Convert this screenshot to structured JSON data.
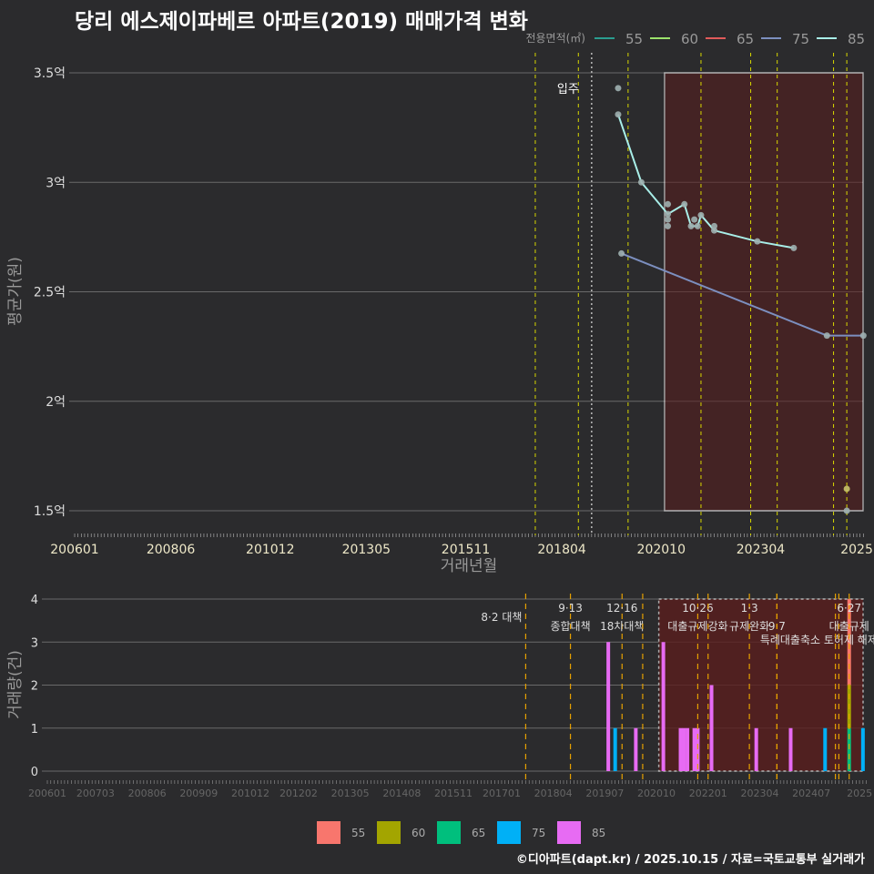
{
  "title": "당리 에스제이파베르 아파트(2019) 매매가격 변화",
  "credit": "©디아파트(dapt.kr) / 2025.10.15 / 자료=국토교통부 실거래가",
  "colors": {
    "55": "#f8766d",
    "60": "#a3a500",
    "65": "#00bf7d",
    "75": "#00b0f6",
    "85": "#e76bf3",
    "line55": "#2a9d8f",
    "line60": "#9be36b",
    "line65": "#e05a5a",
    "line75": "#7c8fbf",
    "line85": "#a8eee8"
  },
  "chart_data": [
    {
      "type": "line",
      "title": "당리 에스제이파베르 아파트(2019) 매매가격 변화",
      "xlabel": "거래년월",
      "ylabel": "평균가(원)",
      "legend_title": "전용면적(㎡)",
      "legend": [
        "55",
        "60",
        "65",
        "75",
        "85"
      ],
      "legend_position": "top-right",
      "xticks": [
        "200601",
        "200806",
        "201012",
        "201305",
        "201511",
        "201804",
        "202010",
        "202304",
        "2025"
      ],
      "yticks": [
        {
          "v": 1.5,
          "label": "1.5억"
        },
        {
          "v": 2,
          "label": "2억"
        },
        {
          "v": 2.5,
          "label": "2.5억"
        },
        {
          "v": 3,
          "label": "3억"
        },
        {
          "v": 3.5,
          "label": "3.5억"
        }
      ],
      "ylim": [
        1.4,
        3.6
      ],
      "move_in": {
        "month": "201901",
        "label": "입주"
      },
      "highlight_box": {
        "from": "202011",
        "to": "202510",
        "ymin": 1.5,
        "ymax": 3.5
      },
      "policy_lines": [
        "201708",
        "201809",
        "201912",
        "202110",
        "202301",
        "202309",
        "202502",
        "202506"
      ],
      "series": [
        {
          "name": "85",
          "points": [
            [
              "201909",
              3.31
            ],
            [
              "202004",
              3.0
            ],
            [
              "202012",
              2.855
            ],
            [
              "202105",
              2.9
            ],
            [
              "202107",
              2.8
            ],
            [
              "202109",
              2.8
            ],
            [
              "202110",
              2.85
            ],
            [
              "202202",
              2.78
            ],
            [
              "202303",
              2.73
            ],
            [
              "202402",
              2.7
            ]
          ],
          "extra_points": [
            [
              "201909",
              3.43
            ],
            [
              "202012",
              2.9
            ],
            [
              "202012",
              2.83
            ],
            [
              "202012",
              2.8
            ],
            [
              "202108",
              2.83
            ],
            [
              "202202",
              2.8
            ]
          ]
        },
        {
          "name": "75",
          "points": [
            [
              "201910",
              2.675
            ],
            [
              "202412",
              2.3
            ],
            [
              "202511",
              2.3
            ]
          ]
        },
        {
          "name": "60",
          "points": [
            [
              "202506",
              1.6
            ]
          ]
        },
        {
          "name": "55",
          "points": [
            [
              "202506",
              1.5
            ]
          ]
        }
      ]
    },
    {
      "type": "bar",
      "xlabel": "",
      "ylabel": "거래량(건)",
      "ylim": [
        0,
        4
      ],
      "yticks": [
        0,
        1,
        2,
        3,
        4
      ],
      "xticks": [
        "200601",
        "200703",
        "200806",
        "200909",
        "201012",
        "201202",
        "201305",
        "201408",
        "201511",
        "201701",
        "201804",
        "201907",
        "202010",
        "202201",
        "202304",
        "202407",
        "2025"
      ],
      "highlight_box": {
        "from": "202012",
        "to": "202510"
      },
      "events": [
        {
          "month": "201708",
          "date": "8·2 대책",
          "label": ""
        },
        {
          "month": "201809",
          "date": "9·13",
          "label": "종합대책"
        },
        {
          "month": "201912",
          "date": "12·16",
          "label": "18차대책"
        },
        {
          "month": "202006",
          "date": "",
          "label": ""
        },
        {
          "month": "202110",
          "date": "10·26",
          "label": "대출규제강화"
        },
        {
          "month": "202301",
          "date": "1·3",
          "label": "규제완화"
        },
        {
          "month": "202309",
          "date": "",
          "label": "9·7"
        },
        {
          "month": "202309",
          "date": "",
          "label": "특례대출축소 토허제 해제",
          "row": 3
        },
        {
          "month": "202201",
          "date": "",
          "label": ""
        },
        {
          "month": "202502",
          "date": "",
          "label": ""
        },
        {
          "month": "202503",
          "date": "",
          "label": ""
        },
        {
          "month": "202506",
          "date": "6·27",
          "label": "대출규제"
        }
      ],
      "bars": [
        {
          "month": "201908",
          "area": "85",
          "count": 3
        },
        {
          "month": "201910",
          "area": "75",
          "count": 1
        },
        {
          "month": "202004",
          "area": "85",
          "count": 1
        },
        {
          "month": "202012",
          "area": "85",
          "count": 3
        },
        {
          "month": "202105",
          "area": "85",
          "count": 1
        },
        {
          "month": "202106",
          "area": "85",
          "count": 1
        },
        {
          "month": "202107",
          "area": "85",
          "count": 1
        },
        {
          "month": "202109",
          "area": "85",
          "count": 1
        },
        {
          "month": "202110",
          "area": "85",
          "count": 1
        },
        {
          "month": "202202",
          "area": "85",
          "count": 2
        },
        {
          "month": "202303",
          "area": "85",
          "count": 1
        },
        {
          "month": "202401",
          "area": "85",
          "count": 1
        },
        {
          "month": "202411",
          "area": "75",
          "count": 1
        },
        {
          "month": "202506",
          "area": "65",
          "count": 1
        },
        {
          "month": "202506",
          "area": "60",
          "count": 1
        },
        {
          "month": "202506",
          "area": "55",
          "count": 2
        },
        {
          "month": "202510",
          "area": "75",
          "count": 1
        }
      ],
      "legend": [
        "55",
        "60",
        "65",
        "75",
        "85"
      ],
      "legend_position": "bottom"
    }
  ]
}
